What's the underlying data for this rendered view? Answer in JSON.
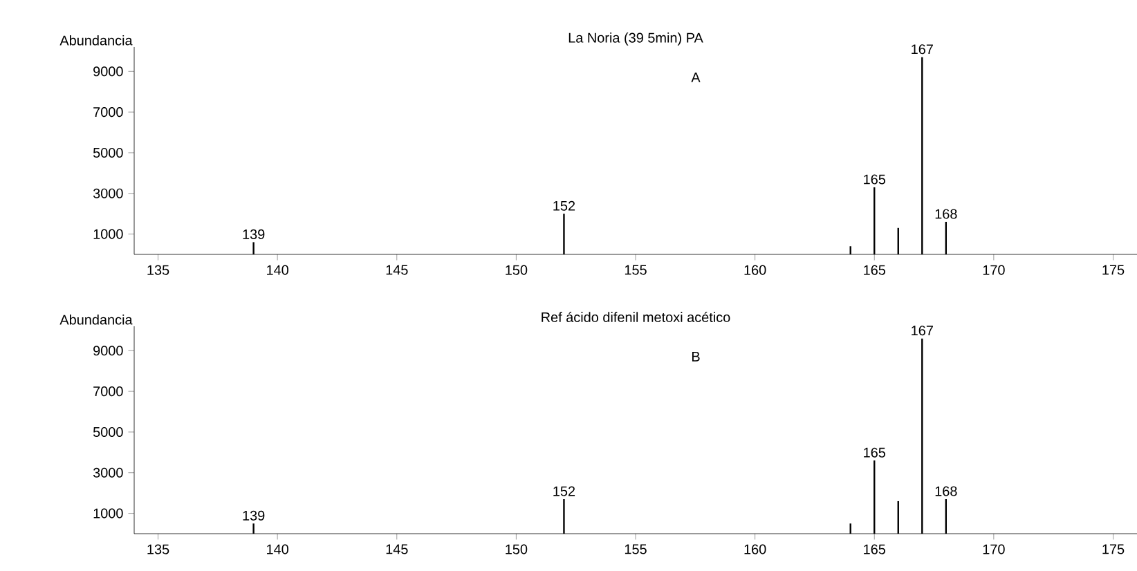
{
  "chart_data": [
    {
      "type": "bar",
      "title": "La Noria (39 5min) PA",
      "ylabel": "Abundancia",
      "x": [
        139,
        152,
        164,
        165,
        166,
        167,
        168
      ],
      "values": [
        600,
        2000,
        400,
        3300,
        1300,
        9700,
        1600
      ],
      "color": "#000000",
      "xlim": [
        134,
        176
      ],
      "xticks": [
        135,
        140,
        145,
        150,
        155,
        160,
        165,
        170,
        175
      ],
      "ylim": [
        0,
        10200
      ],
      "yticks": [
        1000,
        3000,
        5000,
        7000,
        9000
      ],
      "annotations": [
        "A",
        {
          "text": "139",
          "x": 139,
          "y": 600
        },
        {
          "text": "152",
          "x": 152,
          "y": 2000
        },
        {
          "text": "165",
          "x": 165,
          "y": 3300
        },
        {
          "text": "167",
          "x": 167,
          "y": 9700
        },
        {
          "text": "168",
          "x": 168,
          "y": 1600
        }
      ]
    },
    {
      "type": "bar",
      "title": "Ref  ácido difenil metoxi acético",
      "ylabel": "Abundancia",
      "x": [
        139,
        152,
        164,
        165,
        166,
        167,
        168
      ],
      "values": [
        500,
        1700,
        500,
        3600,
        1600,
        9600,
        1700
      ],
      "color": "#000000",
      "xlim": [
        134,
        176
      ],
      "xticks": [
        135,
        140,
        145,
        150,
        155,
        160,
        165,
        170,
        175
      ],
      "ylim": [
        0,
        10200
      ],
      "yticks": [
        1000,
        3000,
        5000,
        7000,
        9000
      ],
      "annotations": [
        "B",
        {
          "text": "139",
          "x": 139,
          "y": 500
        },
        {
          "text": "152",
          "x": 152,
          "y": 1700
        },
        {
          "text": "165",
          "x": 165,
          "y": 3600
        },
        {
          "text": "167",
          "x": 167,
          "y": 9600
        },
        {
          "text": "168",
          "x": 168,
          "y": 1700
        }
      ]
    }
  ]
}
